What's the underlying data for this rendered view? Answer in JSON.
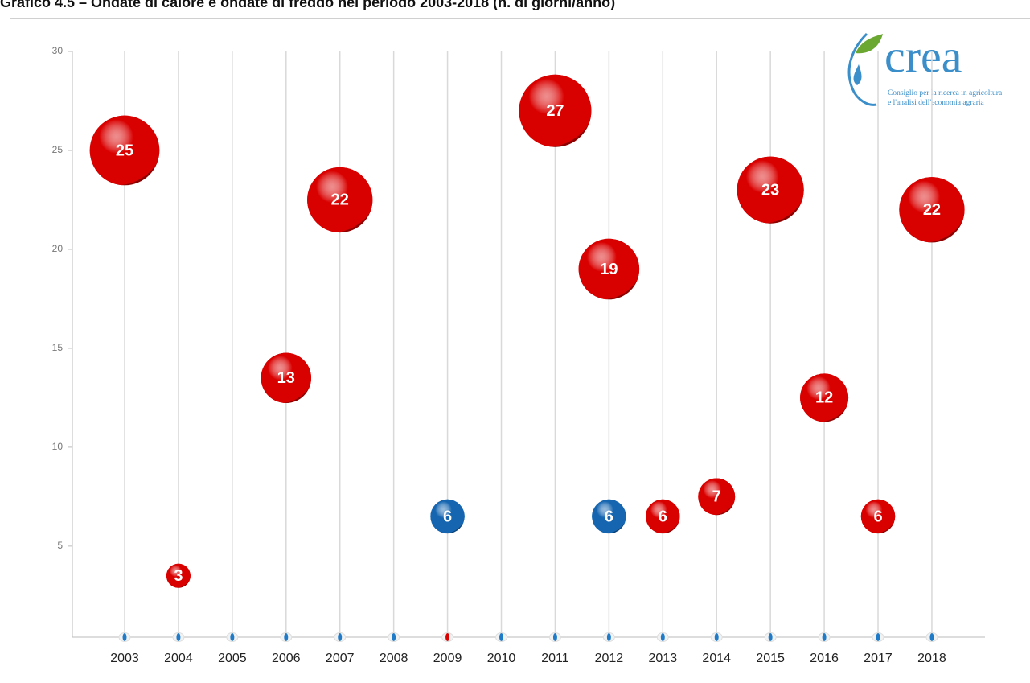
{
  "chart_data": {
    "type": "bubble",
    "title": "Grafico 4.5 – Ondate di calore e ondate di freddo nel periodo 2003-2018 (n. di giorni/anno)",
    "categories": [
      "2003",
      "2004",
      "2005",
      "2006",
      "2007",
      "2008",
      "2009",
      "2010",
      "2011",
      "2012",
      "2013",
      "2014",
      "2015",
      "2016",
      "2017",
      "2018"
    ],
    "series": [
      {
        "color": "#d90000",
        "values": [
          25,
          3.5,
          null,
          13.5,
          22.5,
          null,
          null,
          null,
          27,
          19,
          6.5,
          7.5,
          23,
          12.5,
          6.5,
          22
        ],
        "sizes": [
          25,
          3,
          null,
          13,
          22,
          null,
          null,
          null,
          27,
          19,
          6,
          7,
          23,
          12,
          6,
          22
        ]
      },
      {
        "color": "#1565b0",
        "values": [
          null,
          null,
          null,
          null,
          null,
          null,
          6.5,
          null,
          null,
          6.5,
          null,
          null,
          null,
          null,
          null,
          null
        ],
        "sizes": [
          null,
          null,
          null,
          null,
          null,
          null,
          6,
          null,
          null,
          6,
          null,
          null,
          null,
          null,
          null,
          null
        ]
      }
    ],
    "baseline_marker_colors": [
      "#1f7ac8",
      "#1f7ac8",
      "#1f7ac8",
      "#1f7ac8",
      "#1f7ac8",
      "#1f7ac8",
      "#d90000",
      "#1f7ac8",
      "#1f7ac8",
      "#1f7ac8",
      "#1f7ac8",
      "#1f7ac8",
      "#1f7ac8",
      "#1f7ac8",
      "#1f7ac8",
      "#1f7ac8"
    ],
    "ylim": [
      0.4,
      30
    ],
    "yticks": [
      5,
      10,
      15,
      20,
      25,
      30
    ],
    "grid": true
  },
  "logo": {
    "name": "crea",
    "line1": "Consiglio per la ricerca in agricoltura",
    "line2": "e l'analisi dell'economia agraria"
  }
}
